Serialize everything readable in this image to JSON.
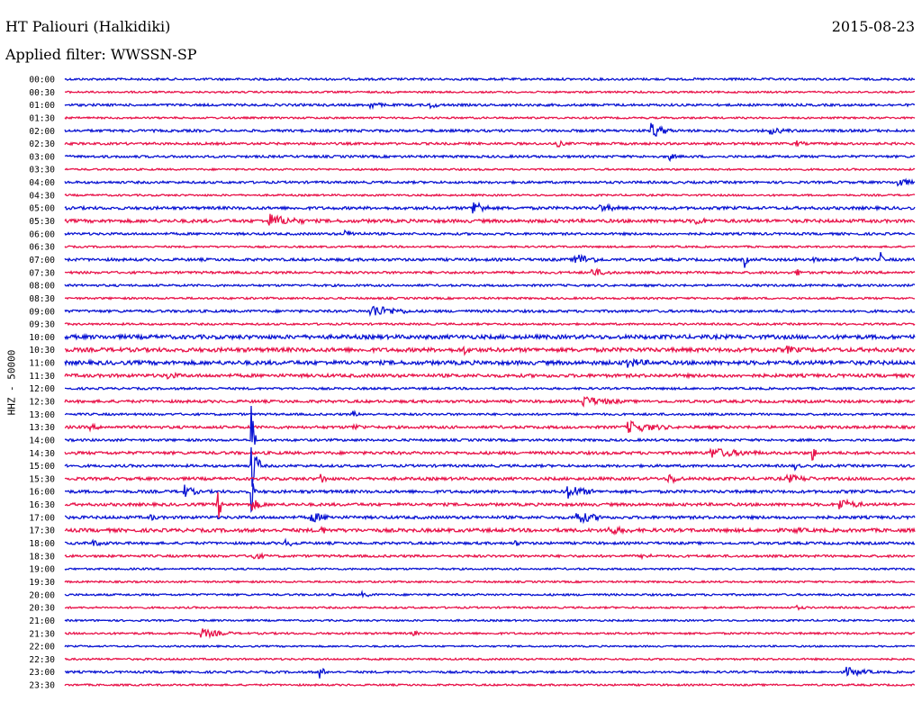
{
  "header": {
    "station": "HT Paliouri (Halkidiki)",
    "date": "2015-08-23",
    "filter": "Applied filter: WWSSN-SP"
  },
  "chart_data": {
    "type": "line",
    "title": "HT Paliouri (Halkidiki)",
    "ylabel": "HHZ - 50000",
    "colors": {
      "blue": "#0a14d2",
      "red": "#e8134a"
    },
    "rows": [
      {
        "label": "00:00",
        "color": "blue",
        "noise": 1.2,
        "events": []
      },
      {
        "label": "00:30",
        "color": "red",
        "noise": 1.0,
        "events": []
      },
      {
        "label": "01:00",
        "color": "blue",
        "noise": 1.3,
        "events": [
          [
            0.36,
            3,
            8
          ],
          [
            0.43,
            3,
            6
          ]
        ]
      },
      {
        "label": "01:30",
        "color": "red",
        "noise": 1.0,
        "events": []
      },
      {
        "label": "02:00",
        "color": "blue",
        "noise": 1.4,
        "events": [
          [
            0.69,
            9,
            10
          ],
          [
            0.83,
            3,
            12
          ]
        ]
      },
      {
        "label": "02:30",
        "color": "red",
        "noise": 1.3,
        "events": [
          [
            0.58,
            3,
            5
          ],
          [
            0.86,
            3,
            5
          ]
        ]
      },
      {
        "label": "03:00",
        "color": "blue",
        "noise": 1.3,
        "events": [
          [
            0.71,
            5,
            4
          ]
        ]
      },
      {
        "label": "03:30",
        "color": "red",
        "noise": 1.0,
        "events": []
      },
      {
        "label": "04:00",
        "color": "blue",
        "noise": 1.3,
        "events": [
          [
            0.98,
            6,
            8
          ]
        ]
      },
      {
        "label": "04:30",
        "color": "red",
        "noise": 1.0,
        "events": []
      },
      {
        "label": "05:00",
        "color": "blue",
        "noise": 1.6,
        "events": [
          [
            0.48,
            11,
            8
          ],
          [
            0.63,
            4,
            10
          ]
        ]
      },
      {
        "label": "05:30",
        "color": "red",
        "noise": 1.8,
        "events": [
          [
            0.24,
            7,
            18
          ],
          [
            0.74,
            4,
            8
          ]
        ]
      },
      {
        "label": "06:00",
        "color": "blue",
        "noise": 1.3,
        "events": [
          [
            0.33,
            3,
            10
          ]
        ]
      },
      {
        "label": "06:30",
        "color": "red",
        "noise": 1.0,
        "events": []
      },
      {
        "label": "07:00",
        "color": "blue",
        "noise": 1.5,
        "events": [
          [
            0.6,
            7,
            14
          ],
          [
            0.8,
            8,
            2
          ],
          [
            0.88,
            9,
            2
          ],
          [
            0.93,
            8,
            2
          ],
          [
            0.96,
            7,
            2
          ]
        ]
      },
      {
        "label": "07:30",
        "color": "red",
        "noise": 1.3,
        "events": [
          [
            0.62,
            4,
            12
          ],
          [
            0.86,
            7,
            3
          ]
        ]
      },
      {
        "label": "08:00",
        "color": "blue",
        "noise": 1.2,
        "events": []
      },
      {
        "label": "08:30",
        "color": "red",
        "noise": 1.1,
        "events": []
      },
      {
        "label": "09:00",
        "color": "blue",
        "noise": 1.4,
        "events": [
          [
            0.36,
            7,
            20
          ]
        ]
      },
      {
        "label": "09:30",
        "color": "red",
        "noise": 1.1,
        "events": []
      },
      {
        "label": "10:00",
        "color": "blue",
        "noise": 2.2,
        "events": []
      },
      {
        "label": "10:30",
        "color": "red",
        "noise": 2.2,
        "events": [
          [
            0.47,
            4,
            4
          ],
          [
            0.85,
            3,
            8
          ]
        ]
      },
      {
        "label": "11:00",
        "color": "blue",
        "noise": 2.2,
        "events": [
          [
            0.66,
            5,
            12
          ]
        ]
      },
      {
        "label": "11:30",
        "color": "red",
        "noise": 1.8,
        "events": [
          [
            0.12,
            3,
            8
          ]
        ]
      },
      {
        "label": "12:00",
        "color": "blue",
        "noise": 1.2,
        "events": []
      },
      {
        "label": "12:30",
        "color": "red",
        "noise": 1.5,
        "events": [
          [
            0.61,
            5,
            20
          ]
        ]
      },
      {
        "label": "13:00",
        "color": "blue",
        "noise": 1.2,
        "events": [
          [
            0.34,
            3,
            3
          ]
        ]
      },
      {
        "label": "13:30",
        "color": "red",
        "noise": 1.5,
        "events": [
          [
            0.66,
            7,
            22
          ],
          [
            0.03,
            2,
            8
          ],
          [
            0.34,
            3,
            6
          ]
        ]
      },
      {
        "label": "14:00",
        "color": "blue",
        "noise": 1.3,
        "events": [
          [
            0.22,
            40,
            2
          ]
        ]
      },
      {
        "label": "14:30",
        "color": "red",
        "noise": 1.6,
        "events": [
          [
            0.76,
            5,
            25
          ],
          [
            0.88,
            8,
            3
          ]
        ]
      },
      {
        "label": "15:00",
        "color": "blue",
        "noise": 1.4,
        "events": [
          [
            0.22,
            30,
            5
          ],
          [
            0.86,
            3,
            3
          ]
        ]
      },
      {
        "label": "15:30",
        "color": "red",
        "noise": 1.6,
        "events": [
          [
            0.3,
            8,
            4
          ],
          [
            0.71,
            6,
            8
          ],
          [
            0.85,
            4,
            14
          ]
        ]
      },
      {
        "label": "16:00",
        "color": "blue",
        "noise": 1.6,
        "events": [
          [
            0.14,
            7,
            8
          ],
          [
            0.59,
            8,
            14
          ],
          [
            0.22,
            30,
            2
          ]
        ]
      },
      {
        "label": "16:30",
        "color": "red",
        "noise": 1.6,
        "events": [
          [
            0.18,
            20,
            3
          ],
          [
            0.22,
            6,
            8
          ],
          [
            0.91,
            7,
            12
          ]
        ]
      },
      {
        "label": "17:00",
        "color": "blue",
        "noise": 1.6,
        "events": [
          [
            0.29,
            5,
            12
          ],
          [
            0.6,
            7,
            16
          ],
          [
            0.1,
            3,
            5
          ]
        ]
      },
      {
        "label": "17:30",
        "color": "red",
        "noise": 1.9,
        "events": [
          [
            0.3,
            8,
            3
          ],
          [
            0.64,
            4,
            12
          ],
          [
            0.86,
            3,
            5
          ]
        ]
      },
      {
        "label": "18:00",
        "color": "blue",
        "noise": 1.4,
        "events": [
          [
            0.03,
            3,
            10
          ],
          [
            0.26,
            4,
            6
          ],
          [
            0.53,
            3,
            3
          ]
        ]
      },
      {
        "label": "18:30",
        "color": "red",
        "noise": 1.3,
        "events": [
          [
            0.22,
            4,
            8
          ],
          [
            0.68,
            3,
            6
          ]
        ]
      },
      {
        "label": "19:00",
        "color": "blue",
        "noise": 1.0,
        "events": []
      },
      {
        "label": "19:30",
        "color": "red",
        "noise": 1.0,
        "events": []
      },
      {
        "label": "20:00",
        "color": "blue",
        "noise": 1.1,
        "events": [
          [
            0.35,
            2,
            8
          ]
        ]
      },
      {
        "label": "20:30",
        "color": "red",
        "noise": 1.0,
        "events": [
          [
            0.86,
            2,
            6
          ]
        ]
      },
      {
        "label": "21:00",
        "color": "blue",
        "noise": 1.0,
        "events": []
      },
      {
        "label": "21:30",
        "color": "red",
        "noise": 1.1,
        "events": [
          [
            0.16,
            5,
            16
          ],
          [
            0.41,
            4,
            3
          ]
        ]
      },
      {
        "label": "22:00",
        "color": "blue",
        "noise": 0.9,
        "events": []
      },
      {
        "label": "22:30",
        "color": "red",
        "noise": 1.0,
        "events": []
      },
      {
        "label": "23:00",
        "color": "blue",
        "noise": 1.2,
        "events": [
          [
            0.3,
            10,
            3
          ],
          [
            0.92,
            5,
            14
          ]
        ]
      },
      {
        "label": "23:30",
        "color": "red",
        "noise": 1.0,
        "events": []
      }
    ]
  }
}
